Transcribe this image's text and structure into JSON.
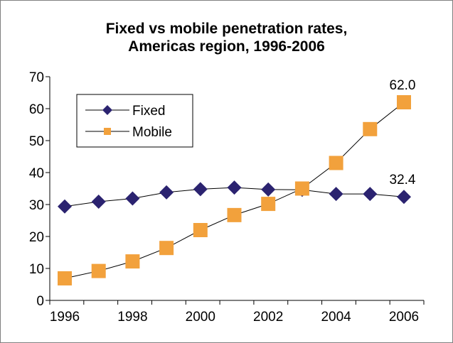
{
  "chart_data": {
    "type": "line",
    "title": [
      "Fixed vs mobile penetration rates,",
      "Americas region, 1996-2006"
    ],
    "xlabel": "",
    "ylabel": "",
    "x": [
      1996,
      1997,
      1998,
      1999,
      2000,
      2001,
      2002,
      2003,
      2004,
      2005,
      2006
    ],
    "xticks": [
      "1996",
      "1998",
      "2000",
      "2002",
      "2004",
      "2006"
    ],
    "xlim": [
      1996,
      2006
    ],
    "ylim": [
      0,
      70
    ],
    "yticks": [
      "0",
      "10",
      "20",
      "30",
      "40",
      "50",
      "60",
      "70"
    ],
    "grid": false,
    "legend": "top-left",
    "series": [
      {
        "name": "Fixed",
        "marker": "diamond",
        "color": "#2B2370",
        "values": [
          29.4,
          30.9,
          31.9,
          33.8,
          34.8,
          35.3,
          34.7,
          34.6,
          33.3,
          33.3,
          32.4
        ],
        "end_label": "32.4"
      },
      {
        "name": "Mobile",
        "marker": "square",
        "color": "#F2A13C",
        "values": [
          6.9,
          9.2,
          12.2,
          16.4,
          22.0,
          26.7,
          30.2,
          35.0,
          43.0,
          53.6,
          62.0
        ],
        "end_label": "62.0"
      }
    ]
  }
}
